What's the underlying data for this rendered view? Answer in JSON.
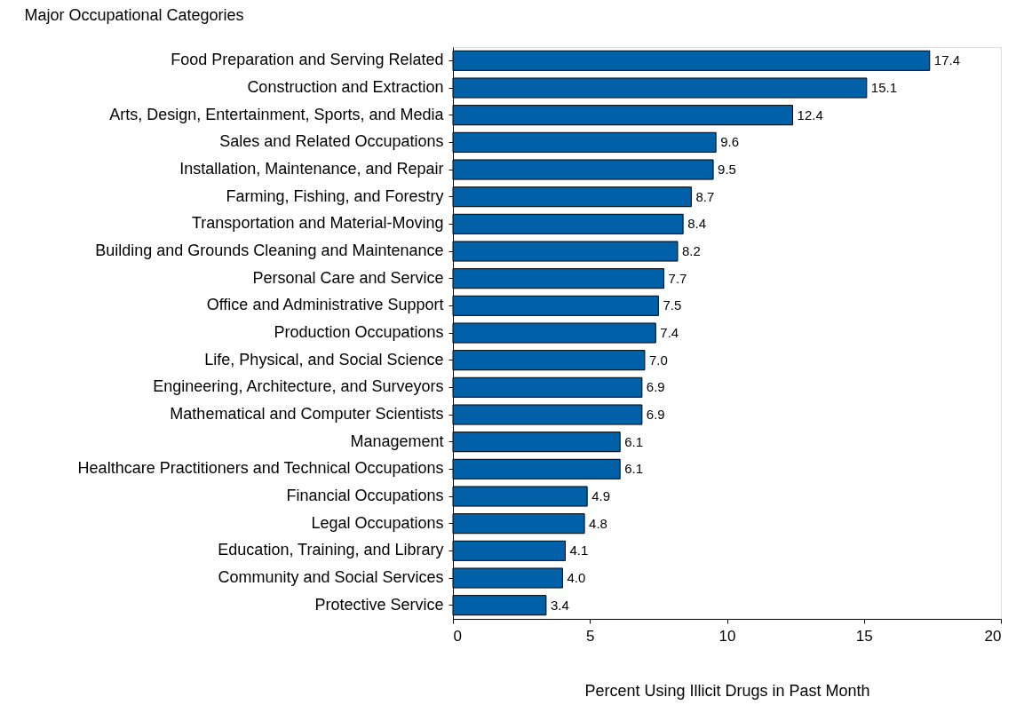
{
  "chart_data": {
    "type": "bar",
    "orientation": "horizontal",
    "ylabel": "Major Occupational Categories",
    "xlabel": "Percent Using Illicit Drugs in Past Month",
    "categories": [
      "Food Preparation and Serving Related",
      "Construction and Extraction",
      "Arts, Design, Entertainment, Sports, and Media",
      "Sales and Related Occupations",
      "Installation, Maintenance, and Repair",
      "Farming, Fishing, and Forestry",
      "Transportation and Material-Moving",
      "Building and Grounds Cleaning and Maintenance",
      "Personal Care and Service",
      "Office and Administrative Support",
      "Production Occupations",
      "Life, Physical, and Social Science",
      "Engineering, Architecture, and Surveyors",
      "Mathematical and Computer Scientists",
      "Management",
      "Healthcare Practitioners and Technical Occupations",
      "Financial Occupations",
      "Legal Occupations",
      "Education, Training, and Library",
      "Community and Social Services",
      "Protective Service"
    ],
    "values": [
      17.4,
      15.1,
      12.4,
      9.6,
      9.5,
      8.7,
      8.4,
      8.2,
      7.7,
      7.5,
      7.4,
      7.0,
      6.9,
      6.9,
      6.1,
      6.1,
      4.9,
      4.8,
      4.1,
      4.0,
      3.4
    ],
    "value_labels": [
      "17.4",
      "15.1",
      "12.4",
      "9.6",
      "9.5",
      "8.7",
      "8.4",
      "8.2",
      "7.7",
      "7.5",
      "7.4",
      "7.0",
      "6.9",
      "6.9",
      "6.1",
      "6.1",
      "4.9",
      "4.8",
      "4.1",
      "4.0",
      "3.4"
    ],
    "color": "#0060a8",
    "xlim": [
      0,
      20
    ],
    "xticks": [
      0,
      5,
      10,
      15,
      20
    ],
    "grid": false
  }
}
